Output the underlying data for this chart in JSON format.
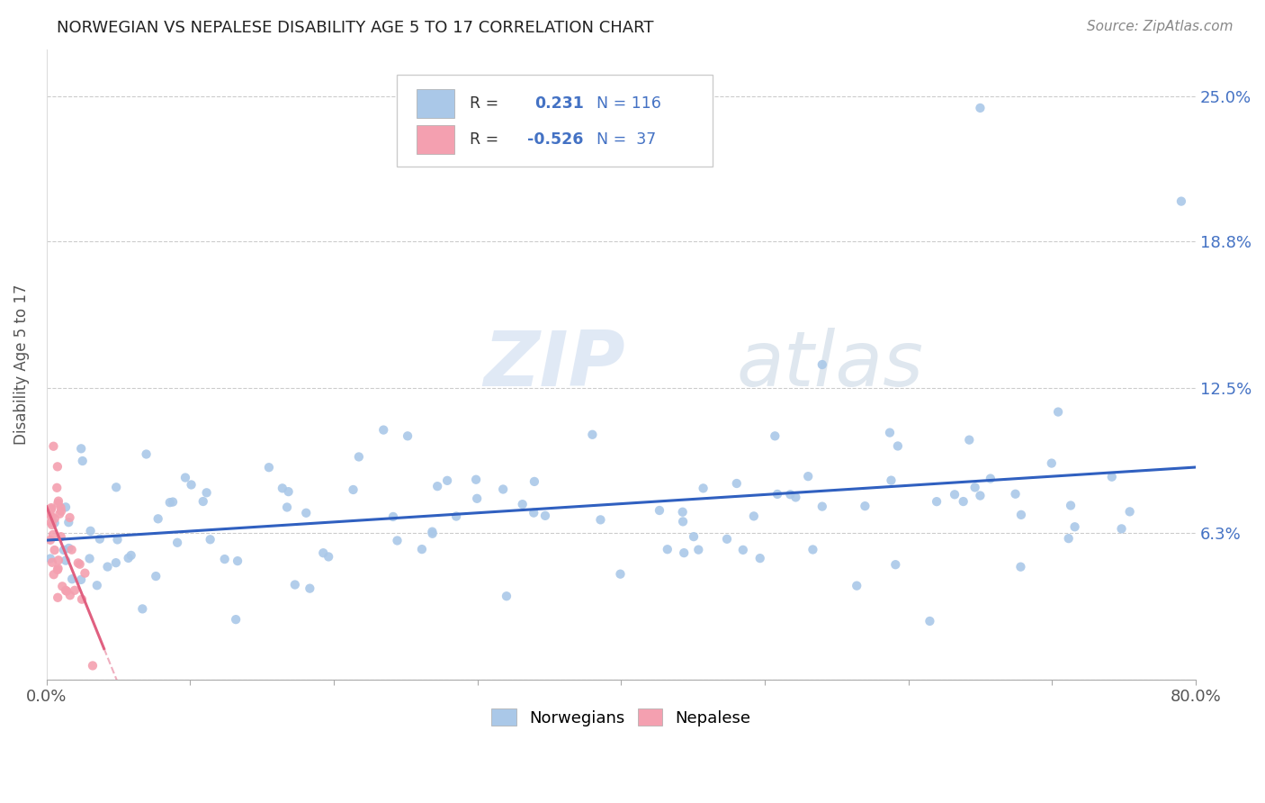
{
  "title": "NORWEGIAN VS NEPALESE DISABILITY AGE 5 TO 17 CORRELATION CHART",
  "source": "Source: ZipAtlas.com",
  "ylabel": "Disability Age 5 to 17",
  "xlim": [
    0.0,
    0.8
  ],
  "ylim": [
    0.0,
    0.27
  ],
  "ytick_vals": [
    0.0,
    0.063,
    0.125,
    0.188,
    0.25
  ],
  "ytick_labels": [
    "",
    "6.3%",
    "12.5%",
    "18.8%",
    "25.0%"
  ],
  "xtick_vals": [
    0.0,
    0.1,
    0.2,
    0.3,
    0.4,
    0.5,
    0.6,
    0.7,
    0.8
  ],
  "xtick_labels": [
    "0.0%",
    "",
    "",
    "",
    "",
    "",
    "",
    "",
    "80.0%"
  ],
  "grid_color": "#cccccc",
  "background_color": "#ffffff",
  "norwegian_color": "#aac8e8",
  "nepalese_color": "#f4a0b0",
  "norwegian_line_color": "#3060c0",
  "nepalese_line_color": "#e06080",
  "R_norwegian": 0.231,
  "N_norwegian": 116,
  "R_nepalese": -0.526,
  "N_nepalese": 37,
  "legend_label_norwegian": "Norwegians",
  "legend_label_nepalese": "Nepalese",
  "watermark_zip": "ZIP",
  "watermark_atlas": "atlas",
  "title_fontsize": 13,
  "source_fontsize": 11,
  "tick_fontsize": 13,
  "ylabel_fontsize": 12
}
